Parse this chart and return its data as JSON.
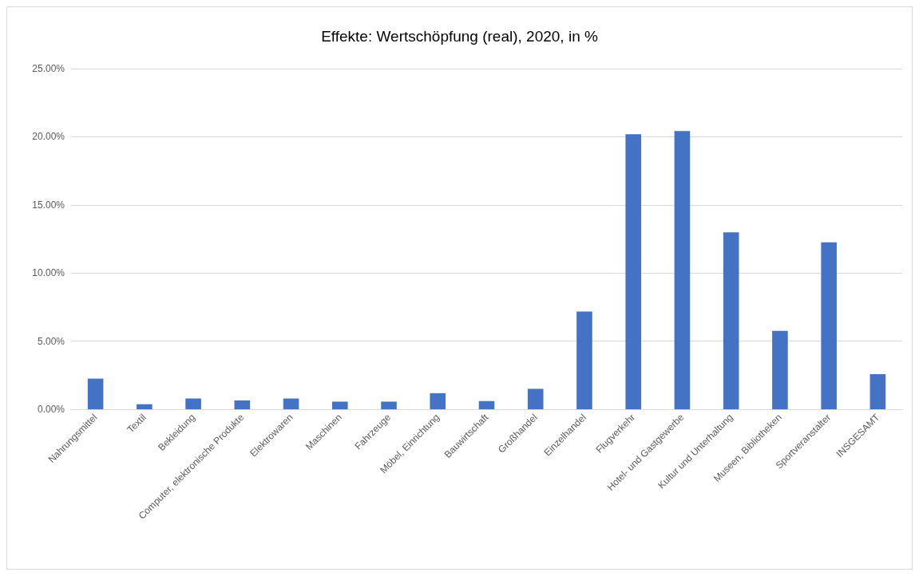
{
  "chart_data": {
    "type": "bar",
    "title": "Effekte: Wertschöpfung (real), 2020, in %",
    "categories": [
      "Nahrungsmittel",
      "Textil",
      "Bekleidung",
      "Computer, elektronische Produkte",
      "Elektrowaren",
      "Maschinen",
      "Fahrzeuge",
      "Möbel, Einrichtung",
      "Bauwirtschaft",
      "Großhandel",
      "Einzelhandel",
      "Flugverkehr",
      "Hotel- und Gastgewerbe",
      "Kultur und Unterhaltung",
      "Museen, Bibliotheken",
      "Sportveranstalter",
      "INSGESAMT"
    ],
    "values": [
      2.25,
      0.37,
      0.79,
      0.65,
      0.79,
      0.56,
      0.56,
      1.18,
      0.6,
      1.5,
      7.17,
      20.19,
      20.42,
      12.98,
      5.75,
      12.25,
      2.58
    ],
    "color": "#4472c4",
    "ylim": [
      0,
      25
    ],
    "yticks": [
      {
        "value": 0,
        "label": "0.00%"
      },
      {
        "value": 5,
        "label": "5.00%"
      },
      {
        "value": 10,
        "label": "10.00%"
      },
      {
        "value": 15,
        "label": "15.00%"
      },
      {
        "value": 20,
        "label": "20.00%"
      },
      {
        "value": 25,
        "label": "25.00%"
      }
    ],
    "grid": "y"
  }
}
